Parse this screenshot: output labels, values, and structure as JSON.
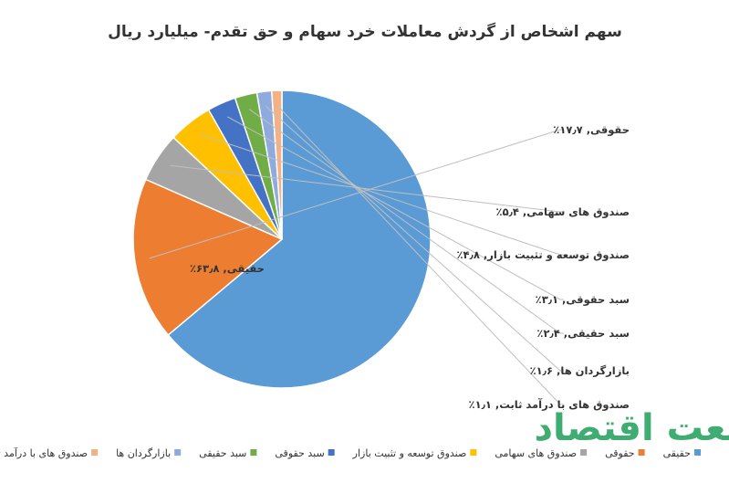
{
  "watermark": {
    "text": "صنعت اقتصاد",
    "color": "#1e9f5a"
  },
  "chart_data": {
    "type": "pie",
    "title": "سهم اشخاص از گردش معاملات خرد سهام و حق تقدم- میلیارد ریال",
    "legend_position": "bottom",
    "slices": [
      {
        "name": "حقیقی",
        "value": 63.8,
        "label": "حقیقی, ۶۳٫۸٪",
        "color": "#5b9bd5"
      },
      {
        "name": "حقوقی",
        "value": 17.7,
        "label": "حقوقی, ۱۷٫۷٪",
        "color": "#ed7d31"
      },
      {
        "name": "صندوق های سهامی",
        "value": 5.4,
        "label": "صندوق های سهامی, ۵٫۴٪",
        "color": "#a5a5a5"
      },
      {
        "name": "صندوق توسعه و تثبیت بازار",
        "value": 4.8,
        "label": "صندوق توسعه و تثبیت بازار, ۴٫۸٪",
        "color": "#ffc000"
      },
      {
        "name": "سبد حقوقی",
        "value": 3.1,
        "label": "سبد حقوقی, ۳٫۱٪",
        "color": "#4472c4"
      },
      {
        "name": "سبد حقیقی",
        "value": 2.4,
        "label": "سبد حقیقی, ۲٫۴٪",
        "color": "#70ad47"
      },
      {
        "name": "بازارگردان ها",
        "value": 1.6,
        "label": "بازارگردان ها, ۱٫۶٪",
        "color": "#8faadc"
      },
      {
        "name": "صندوق های با درآمد ثابت",
        "value": 1.1,
        "label": "صندوق های با درآمد ثابت, ۱٫۱٪",
        "color": "#f4b183"
      }
    ]
  }
}
